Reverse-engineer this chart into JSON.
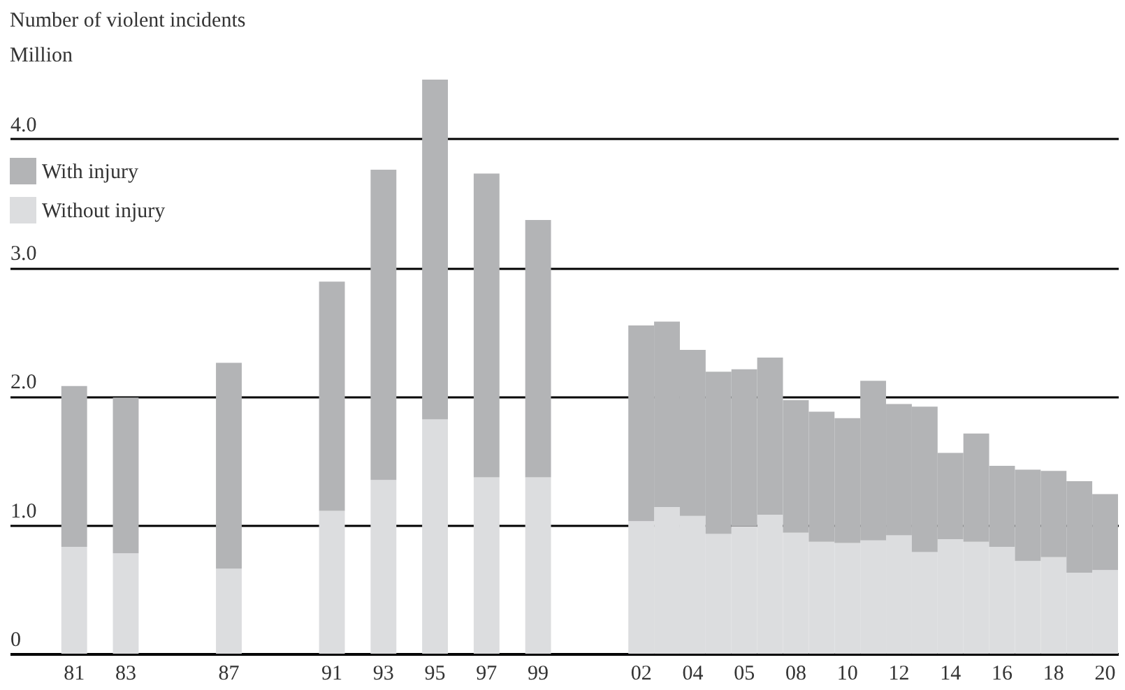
{
  "chart_data": {
    "type": "bar",
    "title": "Number of violent incidents",
    "subtitle": "Million",
    "stacked": true,
    "legend": "top left",
    "grid": "y",
    "categories": [
      "81",
      null,
      "83",
      null,
      null,
      null,
      "87",
      null,
      null,
      null,
      "91",
      null,
      "93",
      null,
      "95",
      null,
      "97",
      null,
      "99",
      null,
      null,
      null,
      "02",
      null,
      "04",
      null,
      "05",
      null,
      "08",
      null,
      "10",
      null,
      "12",
      null,
      "14",
      null,
      "16",
      null,
      "18",
      null,
      "20"
    ],
    "ylim": [
      0,
      4.46
    ],
    "yticks": [
      0,
      {
        "value": 1,
        "label": "1.0"
      },
      {
        "value": 2,
        "label": "2.0"
      },
      {
        "value": 3,
        "label": "3.0"
      },
      {
        "value": 4,
        "label": "4.0"
      }
    ],
    "series": [
      {
        "name": "Without injury",
        "color": "#dcdddf",
        "values": [
          0.83,
          null,
          0.78,
          null,
          null,
          null,
          0.66,
          null,
          null,
          null,
          1.11,
          null,
          1.35,
          null,
          1.82,
          null,
          1.37,
          null,
          1.37,
          null,
          null,
          null,
          1.03,
          1.14,
          1.07,
          0.93,
          0.99,
          1.08,
          0.94,
          0.87,
          0.86,
          0.88,
          0.92,
          0.79,
          0.89,
          0.87,
          0.83,
          0.72,
          0.75,
          0.63,
          0.65
        ]
      },
      {
        "name": "With injury",
        "color": "#b3b4b6",
        "values": [
          1.25,
          null,
          1.21,
          null,
          null,
          null,
          1.6,
          null,
          null,
          null,
          1.78,
          null,
          2.41,
          null,
          2.64,
          null,
          2.36,
          null,
          2.0,
          null,
          null,
          null,
          1.52,
          1.44,
          1.29,
          1.26,
          1.22,
          1.22,
          1.03,
          1.01,
          0.97,
          1.24,
          1.02,
          1.13,
          0.67,
          0.84,
          0.63,
          0.71,
          0.67,
          0.71,
          0.59
        ]
      }
    ]
  }
}
